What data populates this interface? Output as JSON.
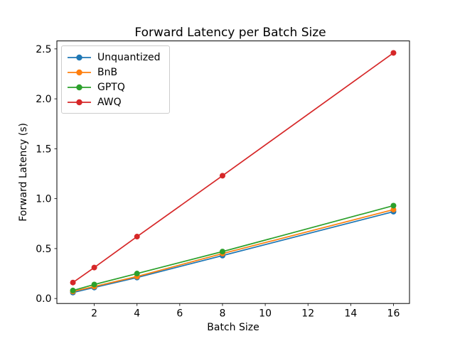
{
  "figure": {
    "background": "#ffffff",
    "axes_background": "#ffffff",
    "spine_color": "#000000",
    "text_color": "#000000",
    "legend_border_color": "#cccccc"
  },
  "chart_data": {
    "type": "line",
    "title": "Forward Latency per Batch Size",
    "xlabel": "Batch Size",
    "ylabel": "Forward Latency (s)",
    "x": [
      1,
      2,
      4,
      8,
      16
    ],
    "series": [
      {
        "name": "Unquantized",
        "color": "#1f77b4",
        "values": [
          0.06,
          0.11,
          0.21,
          0.43,
          0.87
        ]
      },
      {
        "name": "BnB",
        "color": "#ff7f0e",
        "values": [
          0.07,
          0.12,
          0.22,
          0.45,
          0.89
        ]
      },
      {
        "name": "GPTQ",
        "color": "#2ca02c",
        "values": [
          0.08,
          0.14,
          0.25,
          0.47,
          0.93
        ]
      },
      {
        "name": "AWQ",
        "color": "#d62728",
        "values": [
          0.16,
          0.31,
          0.62,
          1.23,
          2.46
        ]
      }
    ],
    "xticks": [
      "2",
      "4",
      "6",
      "8",
      "10",
      "12",
      "14",
      "16"
    ],
    "yticks": [
      "0.0",
      "0.5",
      "1.0",
      "1.5",
      "2.0",
      "2.5"
    ],
    "xlim": [
      0.25,
      16.75
    ],
    "ylim": [
      -0.05,
      2.58
    ],
    "grid": false,
    "legend_position": "upper-left",
    "marker": "circle"
  }
}
